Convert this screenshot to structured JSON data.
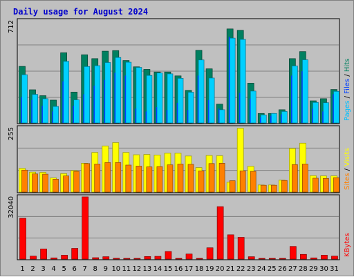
{
  "chart_data": {
    "type": "bar",
    "title": "Daily usage for August 2024",
    "categories": [
      "1",
      "2",
      "3",
      "4",
      "5",
      "6",
      "7",
      "8",
      "9",
      "10",
      "11",
      "12",
      "13",
      "14",
      "15",
      "16",
      "17",
      "18",
      "19",
      "20",
      "21",
      "22",
      "23",
      "24",
      "25",
      "26",
      "27",
      "28",
      "29",
      "30",
      "31"
    ],
    "weekend_days": [
      "3",
      "4",
      "10",
      "11",
      "17",
      "18",
      "24",
      "25",
      "31"
    ],
    "panels": [
      {
        "name": "hits-files-pages",
        "ymax_label": "712",
        "ymax": 712,
        "side_label": [
          {
            "text": "Pages",
            "color": "#00c0ff"
          },
          {
            "text": " / ",
            "color": "#000000"
          },
          {
            "text": "Files",
            "color": "#0040ff"
          },
          {
            "text": " / ",
            "color": "#000000"
          },
          {
            "text": "Hits",
            "color": "#008060"
          }
        ],
        "series": [
          {
            "name": "Hits",
            "color": "#008060",
            "values": [
              394,
              231,
              190,
              159,
              489,
              215,
              475,
              448,
              500,
              504,
              435,
              391,
              373,
              355,
              355,
              328,
              227,
              506,
              377,
              131,
              655,
              645,
              277,
              66,
              66,
              92,
              448,
              497,
              154,
              169,
              233
            ]
          },
          {
            "name": "Pages",
            "color": "#00d0ff",
            "values": [
              336,
              199,
              169,
              115,
              429,
              161,
              393,
              399,
              421,
              456,
              423,
              387,
              331,
              348,
              342,
              311,
              214,
              439,
              313,
              92,
              591,
              582,
              222,
              56,
              66,
              80,
              397,
              440,
              143,
              141,
              220
            ]
          },
          {
            "name": "Files",
            "color": "#0040ff",
            "values": [
              180,
              160,
              120,
              80,
              290,
              120,
              200,
              260,
              300,
              350,
              330,
              100,
              80,
              110,
              90,
              140,
              90,
              330,
              160,
              100,
              600,
              210,
              170,
              40,
              50,
              60,
              330,
              360,
              100,
              80,
              200
            ]
          }
        ]
      },
      {
        "name": "visits-sites",
        "ymax_label": "255",
        "ymax": 255,
        "side_label": [
          {
            "text": "Sites",
            "color": "#ff8000"
          },
          {
            "text": " / ",
            "color": "#000000"
          },
          {
            "text": "Visits",
            "color": "#ffff00"
          }
        ],
        "series": [
          {
            "name": "Visits",
            "color": "#ffff00",
            "values": [
              94,
              79,
              78,
              56,
              73,
              85,
              114,
              157,
              183,
              196,
              157,
              148,
              149,
              147,
              154,
              154,
              143,
              97,
              145,
              144,
              39,
              253,
              102,
              28,
              28,
              47,
              173,
              194,
              65,
              64,
              64
            ]
          },
          {
            "name": "Sites",
            "color": "#ff8000",
            "values": [
              87,
              72,
              71,
              51,
              64,
              82,
              113,
              111,
              117,
              117,
              107,
              103,
              100,
              101,
              108,
              111,
              110,
              84,
              113,
              114,
              45,
              84,
              82,
              27,
              27,
              46,
              109,
              111,
              55,
              54,
              57
            ]
          }
        ]
      },
      {
        "name": "kbytes",
        "ymax_label": "32040",
        "ymax": 32040,
        "side_label": [
          {
            "text": "KBytes",
            "color": "#ff0000"
          }
        ],
        "series": [
          {
            "name": "KBytes",
            "color": "#ff0000",
            "values": [
              21000,
              1500,
              5200,
              600,
              2000,
              5500,
              32040,
              700,
              1200,
              400,
              300,
              300,
              1300,
              1400,
              3900,
              300,
              2600,
              300,
              5800,
              27000,
              12500,
              11200,
              1200,
              300,
              300,
              300,
              6500,
              2400,
              600,
              2000,
              1500
            ]
          }
        ]
      }
    ]
  }
}
